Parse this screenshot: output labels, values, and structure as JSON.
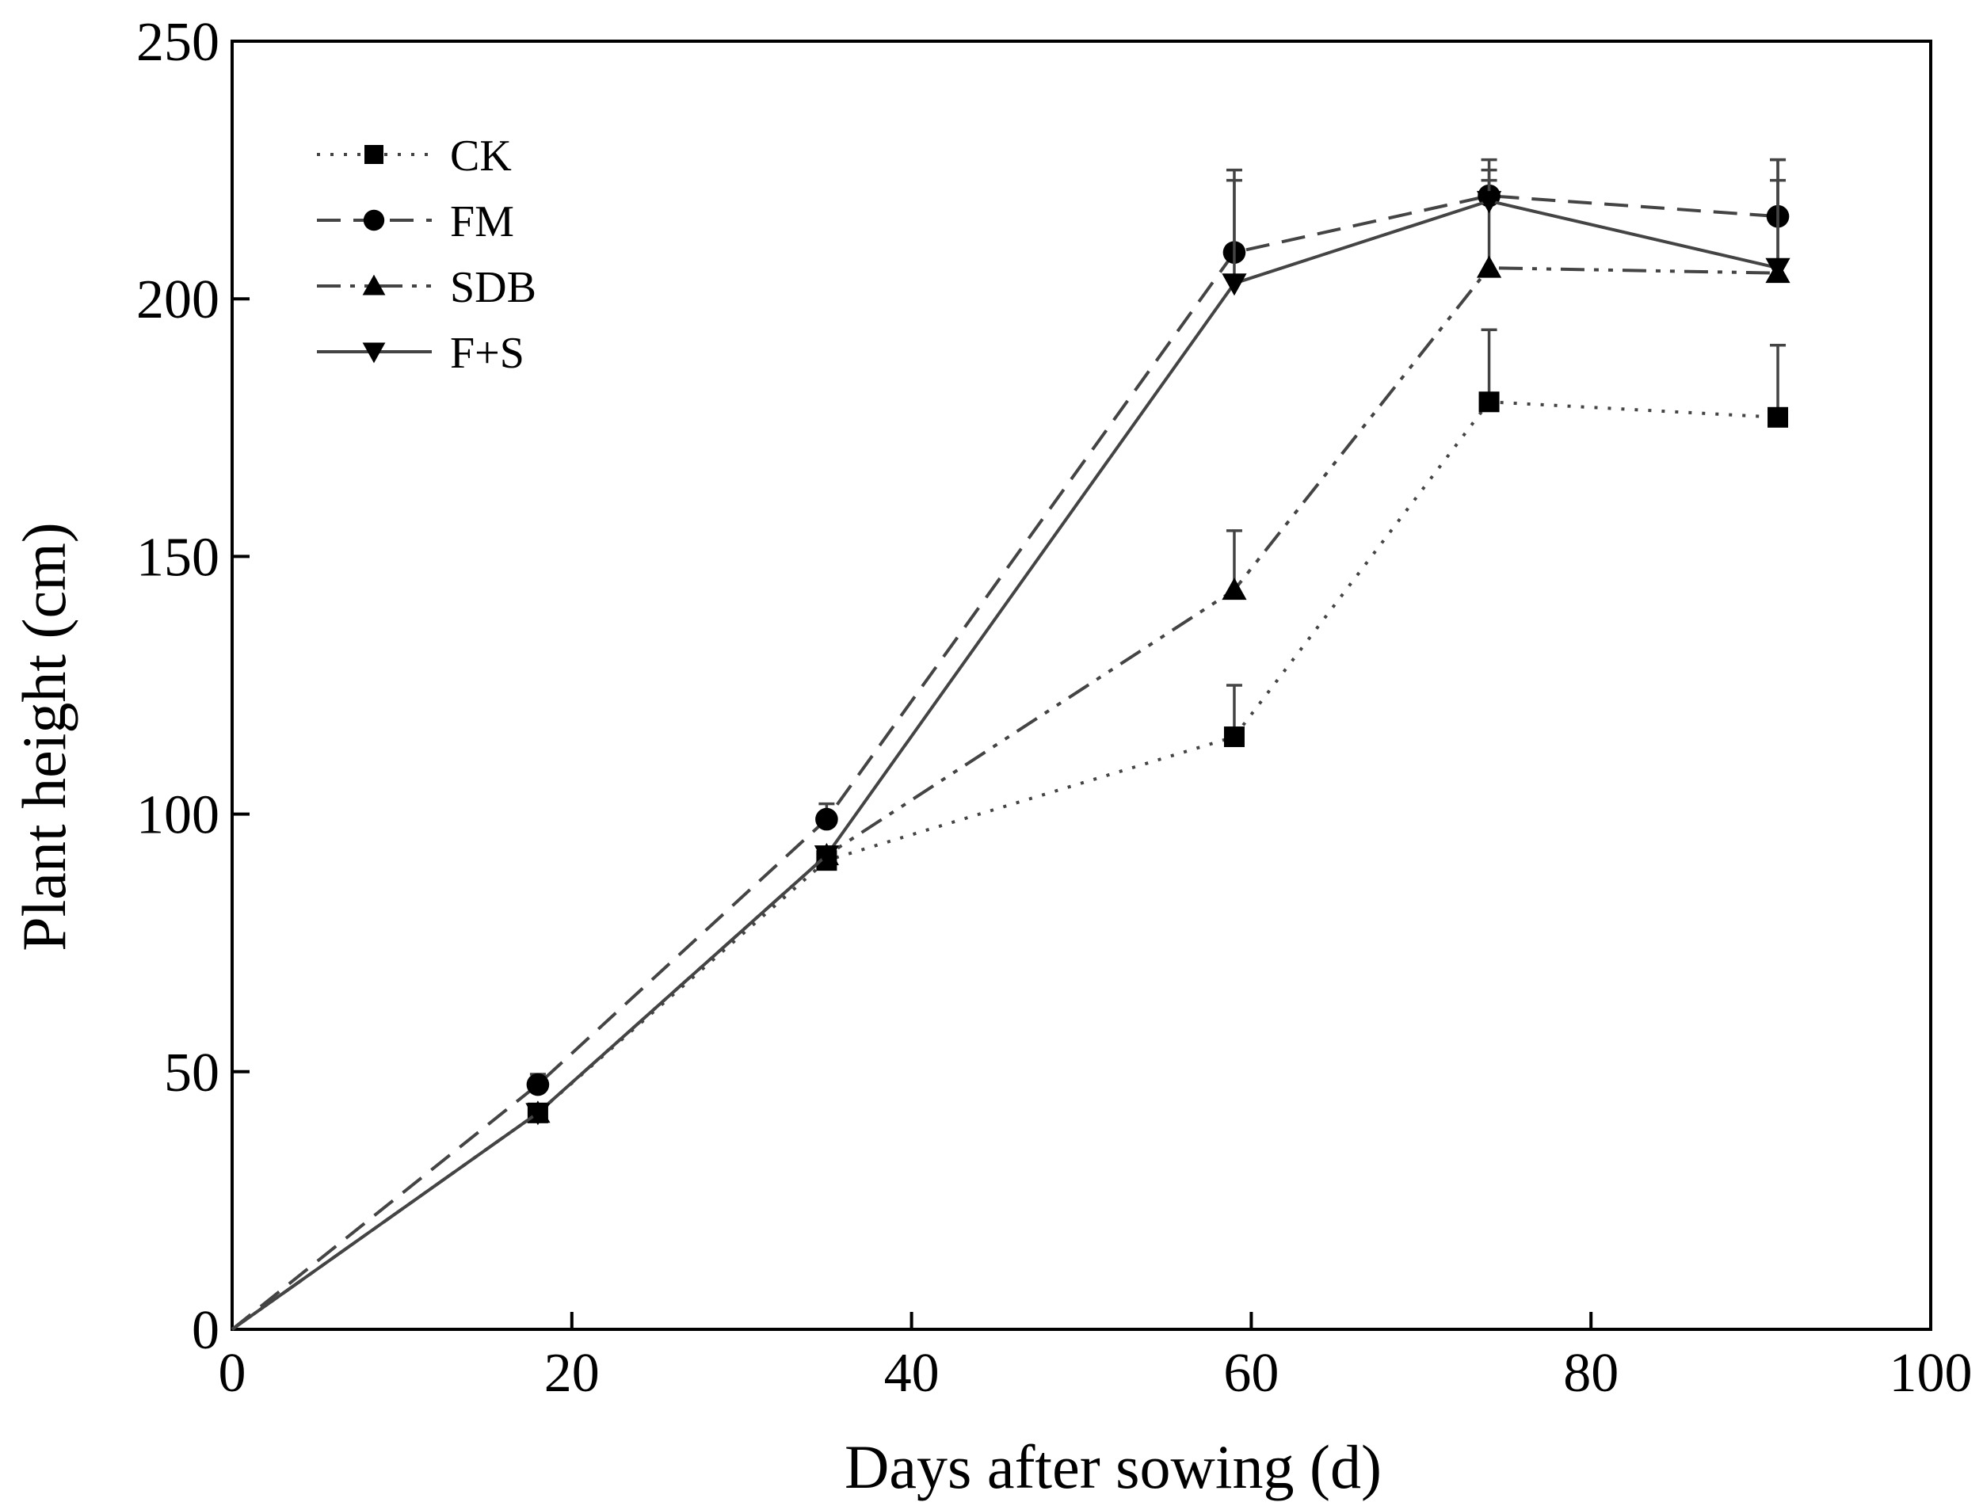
{
  "chart_data": {
    "type": "line",
    "xlabel": "Days after sowing (d)",
    "ylabel": "Plant height (cm)",
    "xlim": [
      0,
      100
    ],
    "ylim": [
      0,
      250
    ],
    "xticks": [
      "0",
      "20",
      "40",
      "60",
      "80",
      "100"
    ],
    "yticks": [
      "0",
      "50",
      "100",
      "150",
      "200",
      "250"
    ],
    "grid": false,
    "legend_position": "top-left",
    "x": [
      0,
      18,
      35,
      59,
      74,
      91
    ],
    "series": [
      {
        "name": "CK",
        "marker": "square",
        "dash": "dotted",
        "color": "#444444",
        "values": [
          0,
          42,
          91,
          115,
          180,
          177
        ],
        "errors": [
          0,
          0,
          0,
          10,
          14,
          14
        ]
      },
      {
        "name": "FM",
        "marker": "circle",
        "dash": "dashed",
        "color": "#444444",
        "values": [
          0,
          47.5,
          99,
          209,
          220,
          216
        ],
        "errors": [
          0,
          2,
          3,
          16,
          7,
          11
        ]
      },
      {
        "name": "SDB",
        "marker": "triangle-up",
        "dash": "dashdot",
        "color": "#444444",
        "values": [
          0,
          42,
          92,
          143.5,
          206,
          205
        ],
        "errors": [
          0,
          0,
          0,
          11.5,
          17,
          18
        ]
      },
      {
        "name": "F+S",
        "marker": "triangle-down",
        "dash": "solid",
        "color": "#444444",
        "values": [
          0,
          42,
          92,
          203,
          219,
          206
        ],
        "errors": [
          0,
          0,
          0,
          20,
          6,
          21
        ]
      }
    ]
  }
}
